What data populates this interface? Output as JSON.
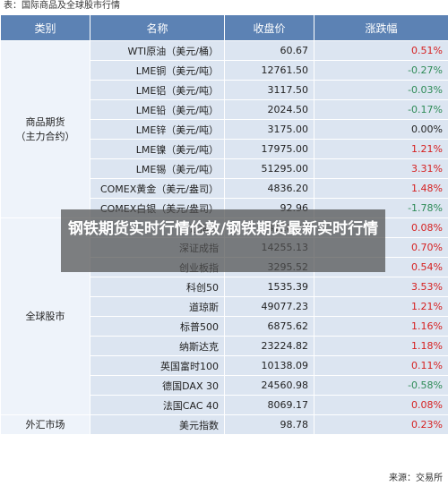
{
  "caption": "表：国际商品及全球股市行情",
  "source": "来源：交易所",
  "headers": [
    "类别",
    "名称",
    "收盘价",
    "涨跌幅"
  ],
  "categories": {
    "commodities": "商品期货\n（主力合约）",
    "stocks": "全球股市",
    "fx": "外汇市场"
  },
  "rows": [
    {
      "name": "WTI原油（美元/桶）",
      "price": "60.67",
      "change": "0.51%",
      "dir": "up"
    },
    {
      "name": "LME铜（美元/吨）",
      "price": "12761.50",
      "change": "-0.27%",
      "dir": "down"
    },
    {
      "name": "LME铝（美元/吨）",
      "price": "3117.50",
      "change": "-0.03%",
      "dir": "down"
    },
    {
      "name": "LME铅（美元/吨）",
      "price": "2024.50",
      "change": "-0.17%",
      "dir": "down"
    },
    {
      "name": "LME锌（美元/吨）",
      "price": "3175.00",
      "change": "0.00%",
      "dir": "flat"
    },
    {
      "name": "LME镍（美元/吨）",
      "price": "17975.00",
      "change": "1.21%",
      "dir": "up"
    },
    {
      "name": "LME锡（美元/吨）",
      "price": "51295.00",
      "change": "3.31%",
      "dir": "up"
    },
    {
      "name": "COMEX黄金（美元/盎司）",
      "price": "4836.20",
      "change": "1.48%",
      "dir": "up"
    },
    {
      "name": "COMEX白银（美元/盎司）",
      "price": "92.96",
      "change": "-1.78%",
      "dir": "down"
    },
    {
      "name": "上证指数",
      "price": "4116.94",
      "change": "0.08%",
      "dir": "up"
    },
    {
      "name": "深证成指",
      "price": "14255.13",
      "change": "0.70%",
      "dir": "up"
    },
    {
      "name": "创业板指",
      "price": "3295.52",
      "change": "0.54%",
      "dir": "up"
    },
    {
      "name": "科创50",
      "price": "1535.39",
      "change": "3.53%",
      "dir": "up"
    },
    {
      "name": "道琼斯",
      "price": "49077.23",
      "change": "1.21%",
      "dir": "up"
    },
    {
      "name": "标普500",
      "price": "6875.62",
      "change": "1.16%",
      "dir": "up"
    },
    {
      "name": "纳斯达克",
      "price": "23224.82",
      "change": "1.18%",
      "dir": "up"
    },
    {
      "name": "英国富时100",
      "price": "10138.09",
      "change": "0.11%",
      "dir": "up"
    },
    {
      "name": "德国DAX 30",
      "price": "24560.98",
      "change": "-0.58%",
      "dir": "down"
    },
    {
      "name": "法国CAC 40",
      "price": "8069.17",
      "change": "0.08%",
      "dir": "up"
    },
    {
      "name": "美元指数",
      "price": "98.78",
      "change": "0.23%",
      "dir": "up"
    }
  ],
  "overlay": "钢铁期货实时行情伦敦/钢铁期货最新实时行情",
  "colors": {
    "header": "#5c82b4",
    "up": "#d62020",
    "down": "#2e8b57",
    "row": "#dce5f1"
  }
}
